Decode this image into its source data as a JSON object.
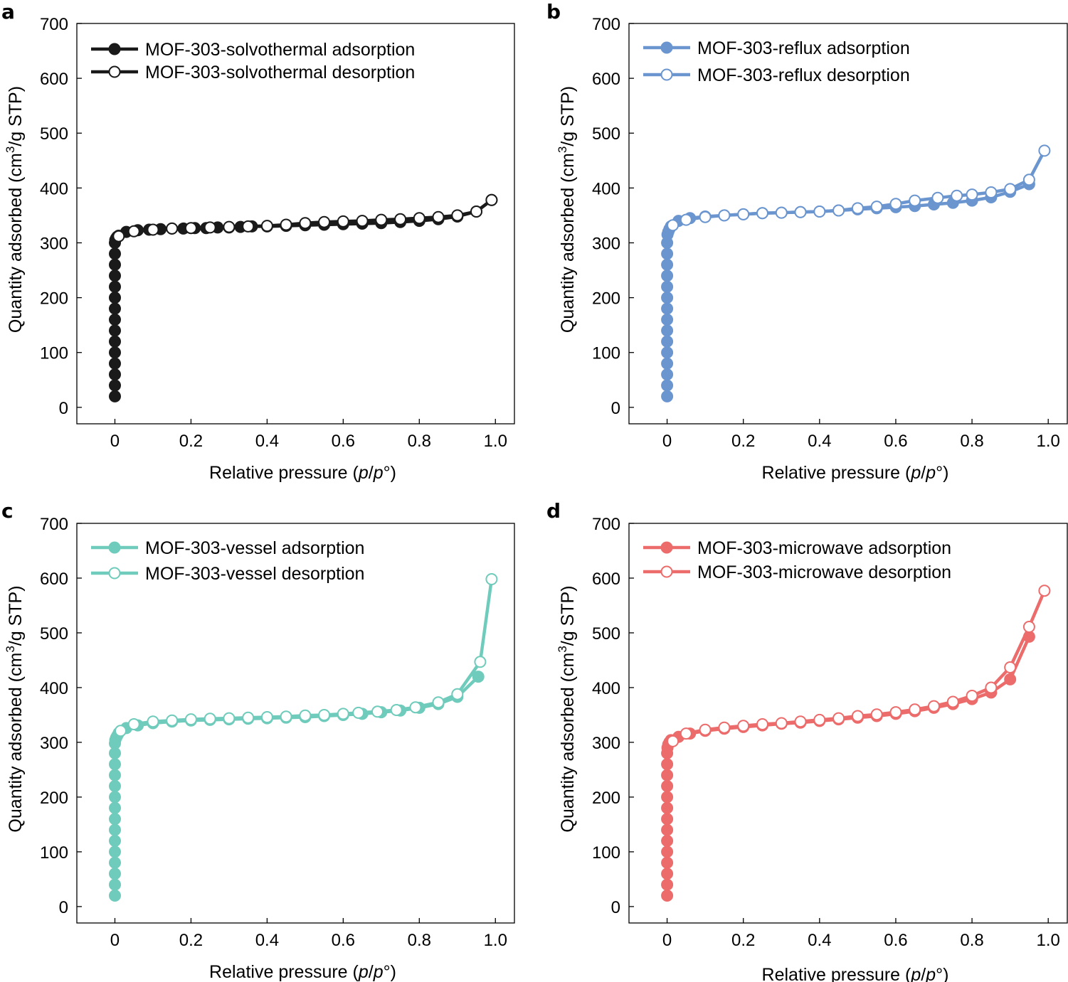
{
  "figure": {
    "panels": [
      "a",
      "b",
      "c",
      "d"
    ]
  },
  "chart_data": [
    {
      "panel": "a",
      "type": "line",
      "xlabel_text": "Relative pressure (",
      "xlabel_italic": "p",
      "xlabel_slash": "/",
      "xlabel_italic2": "p",
      "xlabel_end": "°)",
      "ylabel": "Quantity adsorbed (cm3/g STP)",
      "xlim": [
        -0.1,
        1.05
      ],
      "ylim": [
        -30,
        700
      ],
      "xticks": [
        0,
        0.2,
        0.4,
        0.6,
        0.8,
        1.0
      ],
      "xtick_labels": [
        "0",
        "0.2",
        "0.4",
        "0.6",
        "0.8",
        "1.0"
      ],
      "yticks": [
        0,
        100,
        200,
        300,
        400,
        500,
        600,
        700
      ],
      "ytick_labels": [
        "0",
        "100",
        "200",
        "300",
        "400",
        "500",
        "600",
        "700"
      ],
      "color": "#1a1a1a",
      "legend_position": "top-left",
      "series": [
        {
          "name": "MOF-303-solvothermal adsorption",
          "marker": "filled",
          "x": [
            0,
            0,
            0,
            0,
            0,
            0,
            0,
            0,
            0,
            0,
            0,
            0,
            0,
            0,
            0,
            0.001,
            0.003,
            0.006,
            0.01,
            0.03,
            0.06,
            0.09,
            0.12,
            0.15,
            0.18,
            0.21,
            0.24,
            0.27,
            0.3,
            0.33,
            0.36,
            0.4,
            0.45,
            0.5,
            0.55,
            0.6,
            0.65,
            0.7,
            0.75,
            0.8,
            0.85,
            0.9,
            0.95,
            0.99
          ],
          "y": [
            20,
            40,
            60,
            80,
            100,
            120,
            140,
            160,
            180,
            200,
            220,
            240,
            260,
            280,
            300,
            305,
            308,
            311,
            313,
            320,
            323,
            324,
            325,
            326,
            326,
            327,
            327,
            328,
            328,
            329,
            330,
            330,
            331,
            332,
            333,
            334,
            335,
            336,
            338,
            340,
            343,
            348,
            357,
            378
          ]
        },
        {
          "name": "MOF-303-solvothermal desorption",
          "marker": "open",
          "x": [
            0.99,
            0.95,
            0.9,
            0.85,
            0.8,
            0.75,
            0.7,
            0.65,
            0.6,
            0.55,
            0.5,
            0.45,
            0.4,
            0.35,
            0.3,
            0.25,
            0.2,
            0.15,
            0.1,
            0.05,
            0.01
          ],
          "y": [
            378,
            357,
            350,
            347,
            345,
            343,
            342,
            340,
            339,
            338,
            336,
            333,
            331,
            330,
            329,
            328,
            327,
            326,
            324,
            321,
            312
          ]
        }
      ]
    },
    {
      "panel": "b",
      "type": "line",
      "xlabel_text": "Relative pressure (",
      "xlabel_italic": "p",
      "xlabel_slash": "/",
      "xlabel_italic2": "p",
      "xlabel_end": "°)",
      "ylabel": "Quantity adsorbed (cm3/g STP)",
      "xlim": [
        -0.1,
        1.05
      ],
      "ylim": [
        -30,
        700
      ],
      "xticks": [
        0,
        0.2,
        0.4,
        0.6,
        0.8,
        1.0
      ],
      "xtick_labels": [
        "0",
        "0.2",
        "0.4",
        "0.6",
        "0.8",
        "1.0"
      ],
      "yticks": [
        0,
        100,
        200,
        300,
        400,
        500,
        600,
        700
      ],
      "ytick_labels": [
        "0",
        "100",
        "200",
        "300",
        "400",
        "500",
        "600",
        "700"
      ],
      "color": "#6a95cf",
      "legend_position": "top-left",
      "series": [
        {
          "name": "MOF-303-reflux adsorption",
          "marker": "filled",
          "x": [
            0,
            0,
            0,
            0,
            0,
            0,
            0,
            0,
            0,
            0,
            0,
            0,
            0,
            0,
            0,
            0.001,
            0.003,
            0.006,
            0.01,
            0.03,
            0.06,
            0.1,
            0.15,
            0.2,
            0.25,
            0.3,
            0.35,
            0.4,
            0.45,
            0.5,
            0.55,
            0.6,
            0.65,
            0.7,
            0.75,
            0.8,
            0.85,
            0.9,
            0.95
          ],
          "y": [
            20,
            40,
            60,
            80,
            100,
            120,
            140,
            160,
            180,
            200,
            220,
            240,
            260,
            280,
            300,
            315,
            320,
            325,
            330,
            340,
            345,
            348,
            350,
            352,
            354,
            355,
            356,
            357,
            359,
            361,
            363,
            365,
            367,
            370,
            373,
            377,
            383,
            393,
            407
          ]
        },
        {
          "name": "MOF-303-reflux desorption",
          "marker": "open",
          "x": [
            0.99,
            0.95,
            0.9,
            0.85,
            0.8,
            0.76,
            0.71,
            0.65,
            0.6,
            0.55,
            0.5,
            0.45,
            0.4,
            0.35,
            0.3,
            0.25,
            0.2,
            0.15,
            0.1,
            0.05,
            0.015
          ],
          "y": [
            468,
            415,
            398,
            392,
            388,
            386,
            382,
            377,
            371,
            366,
            363,
            359,
            357,
            356,
            355,
            354,
            352,
            350,
            347,
            342,
            332
          ]
        }
      ]
    },
    {
      "panel": "c",
      "type": "line",
      "xlabel_text": "Relative pressure (",
      "xlabel_italic": "p",
      "xlabel_slash": "/",
      "xlabel_italic2": "p",
      "xlabel_end": "°)",
      "ylabel": "Quantity adsorbed (cm3/g STP)",
      "xlim": [
        -0.1,
        1.05
      ],
      "ylim": [
        -30,
        700
      ],
      "xticks": [
        0,
        0.2,
        0.4,
        0.6,
        0.8,
        1.0
      ],
      "xtick_labels": [
        "0",
        "0.2",
        "0.4",
        "0.6",
        "0.8",
        "1.0"
      ],
      "yticks": [
        0,
        100,
        200,
        300,
        400,
        500,
        600,
        700
      ],
      "ytick_labels": [
        "0",
        "100",
        "200",
        "300",
        "400",
        "500",
        "600",
        "700"
      ],
      "color": "#6fcbbb",
      "legend_position": "top-left",
      "series": [
        {
          "name": "MOF-303-vessel adsorption",
          "marker": "filled",
          "x": [
            0,
            0,
            0,
            0,
            0,
            0,
            0,
            0,
            0,
            0,
            0,
            0,
            0,
            0,
            0,
            0.001,
            0.003,
            0.006,
            0.01,
            0.03,
            0.06,
            0.1,
            0.15,
            0.2,
            0.25,
            0.3,
            0.35,
            0.4,
            0.45,
            0.5,
            0.55,
            0.6,
            0.65,
            0.7,
            0.75,
            0.8,
            0.85,
            0.9,
            0.955
          ],
          "y": [
            20,
            40,
            60,
            80,
            100,
            120,
            140,
            160,
            180,
            200,
            220,
            240,
            260,
            280,
            298,
            304,
            308,
            312,
            317,
            326,
            331,
            335,
            338,
            340,
            341,
            342,
            343,
            344,
            345,
            346,
            348,
            350,
            352,
            355,
            358,
            363,
            370,
            383,
            420
          ]
        },
        {
          "name": "MOF-303-vessel desorption",
          "marker": "open",
          "x": [
            0.99,
            0.96,
            0.9,
            0.85,
            0.79,
            0.74,
            0.69,
            0.64,
            0.6,
            0.55,
            0.5,
            0.45,
            0.4,
            0.35,
            0.3,
            0.25,
            0.2,
            0.15,
            0.1,
            0.05,
            0.015
          ],
          "y": [
            598,
            447,
            388,
            373,
            364,
            359,
            356,
            354,
            352,
            350,
            349,
            347,
            346,
            345,
            344,
            343,
            342,
            340,
            338,
            333,
            321
          ]
        }
      ]
    },
    {
      "panel": "d",
      "type": "line",
      "xlabel_text": "Relative pressure (",
      "xlabel_italic": "p",
      "xlabel_slash": "/",
      "xlabel_italic2": "p",
      "xlabel_end": "°)",
      "ylabel": "Quantity adsorbed (cm3/g STP)",
      "xlim": [
        -0.1,
        1.05
      ],
      "ylim": [
        -30,
        700
      ],
      "xticks": [
        0,
        0.2,
        0.4,
        0.6,
        0.8,
        1.0
      ],
      "xtick_labels": [
        "0",
        "0.2",
        "0.4",
        "0.6",
        "0.8",
        "1.0"
      ],
      "yticks": [
        0,
        100,
        200,
        300,
        400,
        500,
        600,
        700
      ],
      "ytick_labels": [
        "0",
        "100",
        "200",
        "300",
        "400",
        "500",
        "600",
        "700"
      ],
      "color": "#ec6b6b",
      "legend_position": "top-left",
      "series": [
        {
          "name": "MOF-303-microwave adsorption",
          "marker": "filled",
          "x": [
            0,
            0,
            0,
            0,
            0,
            0,
            0,
            0,
            0,
            0,
            0,
            0,
            0,
            0,
            0.001,
            0.003,
            0.006,
            0.01,
            0.03,
            0.06,
            0.1,
            0.15,
            0.2,
            0.25,
            0.3,
            0.35,
            0.4,
            0.45,
            0.5,
            0.55,
            0.6,
            0.65,
            0.7,
            0.75,
            0.8,
            0.85,
            0.9,
            0.95
          ],
          "y": [
            20,
            40,
            60,
            80,
            100,
            120,
            140,
            160,
            180,
            200,
            220,
            240,
            260,
            280,
            290,
            296,
            300,
            304,
            310,
            316,
            321,
            325,
            328,
            331,
            334,
            336,
            339,
            342,
            345,
            348,
            352,
            357,
            363,
            370,
            379,
            391,
            415,
            493
          ]
        },
        {
          "name": "MOF-303-microwave desorption",
          "marker": "open",
          "x": [
            0.99,
            0.95,
            0.9,
            0.85,
            0.8,
            0.75,
            0.7,
            0.65,
            0.6,
            0.55,
            0.5,
            0.45,
            0.4,
            0.35,
            0.3,
            0.25,
            0.2,
            0.15,
            0.1,
            0.05,
            0.015
          ],
          "y": [
            577,
            511,
            437,
            400,
            385,
            374,
            366,
            360,
            355,
            351,
            348,
            344,
            341,
            338,
            335,
            333,
            330,
            327,
            323,
            316,
            302
          ]
        }
      ]
    }
  ]
}
